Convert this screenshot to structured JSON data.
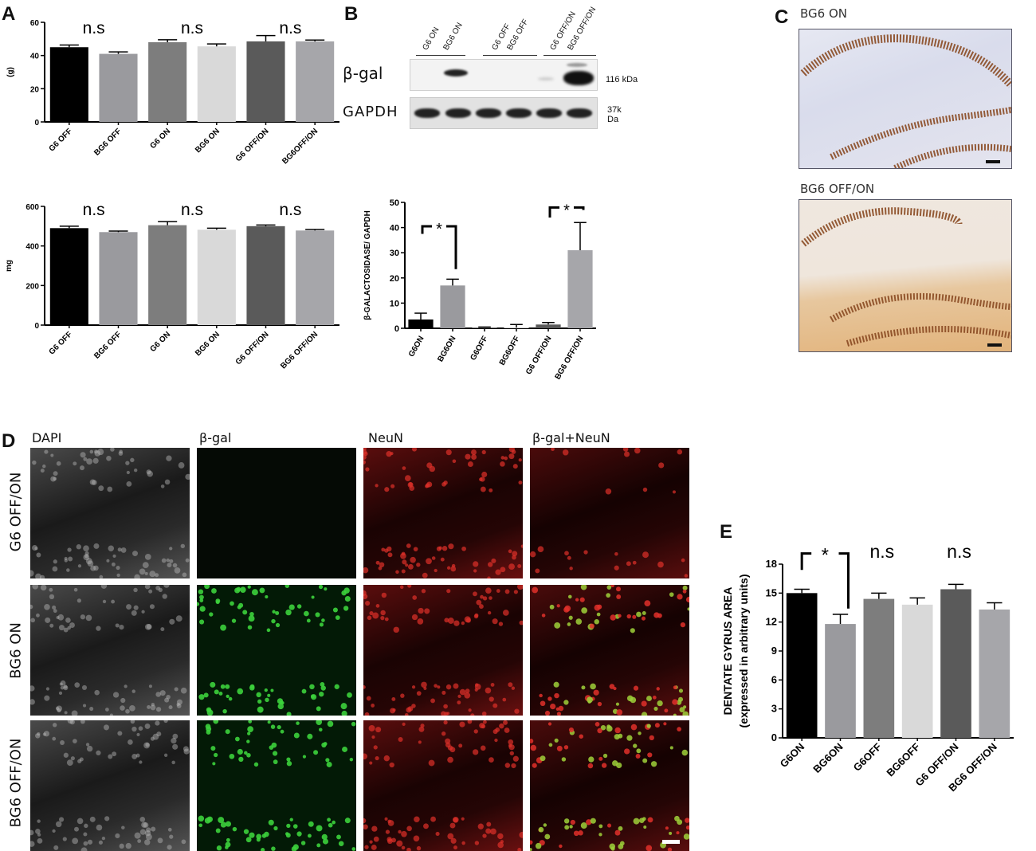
{
  "panels": {
    "A": "A",
    "B": "B",
    "C": "C",
    "D": "D",
    "E": "E"
  },
  "chart_data": [
    {
      "id": "A-top",
      "type": "bar",
      "categories": [
        "G6 OFF",
        "BG6 OFF",
        "G6 ON",
        "BG6 ON",
        "G6 OFF/ON",
        "BG6OFF/ON"
      ],
      "values": [
        45,
        41,
        48,
        45.5,
        48.5,
        48.5
      ],
      "errors": [
        1.3,
        1.2,
        1.5,
        1.5,
        3.5,
        0.8
      ],
      "ylabel": "(g)",
      "ylim": [
        0,
        60
      ],
      "yticks": [
        0,
        20,
        40,
        60
      ],
      "colors": [
        "#000000",
        "#9a9a9e",
        "#7d7d7d",
        "#d9d9d9",
        "#5a5a5a",
        "#a6a6aa"
      ],
      "annotations": [
        "n.s",
        "n.s",
        "n.s"
      ]
    },
    {
      "id": "A-bottom",
      "type": "bar",
      "categories": [
        "G6 OFF",
        "BG6 OFF",
        "G6 ON",
        "BG6 ON",
        "G6 OFF/ON",
        "BG6 OFF/ON"
      ],
      "values": [
        490,
        470,
        505,
        482,
        500,
        478
      ],
      "errors": [
        10,
        5,
        18,
        8,
        6,
        5
      ],
      "ylabel": "mg",
      "ylim": [
        0,
        600
      ],
      "yticks": [
        0,
        200,
        400,
        600
      ],
      "colors": [
        "#000000",
        "#9a9a9e",
        "#7d7d7d",
        "#d9d9d9",
        "#5a5a5a",
        "#a6a6aa"
      ],
      "annotations": [
        "n.s",
        "n.s",
        "n.s"
      ]
    },
    {
      "id": "B-bar",
      "type": "bar",
      "categories": [
        "G6ON",
        "BG6ON",
        "G6OFF",
        "BG6OFF",
        "G6 OFF/ON",
        "BG6 OFF/ON"
      ],
      "values": [
        3.5,
        17,
        0.3,
        0.3,
        1.5,
        31
      ],
      "errors": [
        2.5,
        2.5,
        0.2,
        1.2,
        0.8,
        11
      ],
      "ylabel": "β-GALACTOSIDASE/ GAPDH",
      "ylim": [
        0,
        50
      ],
      "yticks": [
        0,
        10,
        20,
        30,
        40,
        50
      ],
      "colors": [
        "#000000",
        "#9a9a9e",
        "#7d7d7d",
        "#d9d9d9",
        "#5a5a5a",
        "#a6a6aa"
      ],
      "annotations": [
        "*",
        "*"
      ]
    },
    {
      "id": "E",
      "type": "bar",
      "categories": [
        "G6ON",
        "BG6ON",
        "G6OFF",
        "BG6OFF",
        "G6 OFF/ON",
        "BG6 OFF/ON"
      ],
      "values": [
        15,
        11.8,
        14.4,
        13.8,
        15.4,
        13.3
      ],
      "errors": [
        0.4,
        1.0,
        0.6,
        0.7,
        0.5,
        0.7
      ],
      "ylabel": "DENTATE GYRUS AREA\n(expressed in arbitrary units)",
      "ylabel_lines": [
        "DENTATE GYRUS AREA",
        "(expressed in arbitrary units)"
      ],
      "ylim": [
        0,
        18
      ],
      "yticks": [
        0,
        3,
        6,
        9,
        12,
        15,
        18
      ],
      "colors": [
        "#000000",
        "#9a9a9e",
        "#7d7d7d",
        "#d9d9d9",
        "#5a5a5a",
        "#a6a6aa"
      ],
      "annotations": [
        "*",
        "n.s",
        "n.s"
      ]
    }
  ],
  "blot": {
    "lanes": [
      "G6 ON",
      "BG6 ON",
      "G6 OFF",
      "BG6 OFF",
      "G6 OFF/ON",
      "BG6 OFF/ON"
    ],
    "rows": [
      {
        "label": "β-gal",
        "kda": "116 kDa"
      },
      {
        "label": "GAPDH",
        "kda": "37k Da"
      }
    ]
  },
  "panelC": {
    "labels": [
      "BG6 ON",
      "BG6 OFF/ON"
    ]
  },
  "panelD": {
    "columns": [
      "DAPI",
      "β-gal",
      "NeuN",
      "β-gal+NeuN"
    ],
    "rows": [
      "G6 OFF/ON",
      "BG6 ON",
      "BG6 OFF/ON"
    ]
  }
}
